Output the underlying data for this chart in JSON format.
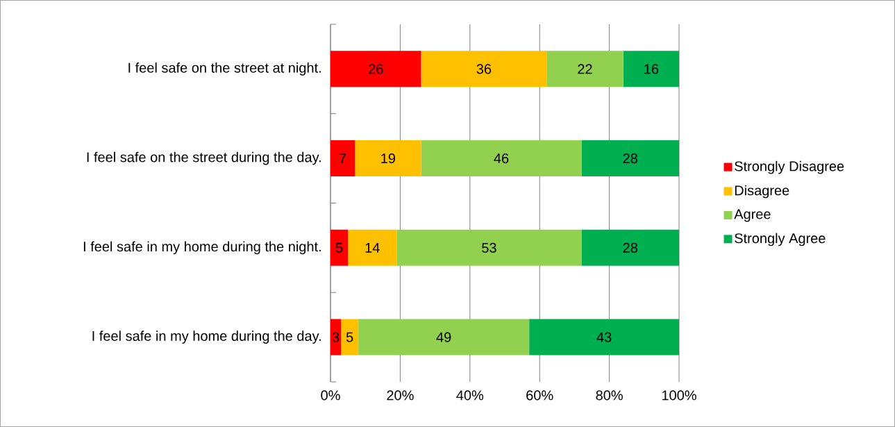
{
  "chart_data": {
    "type": "bar",
    "orientation": "horizontal",
    "stacked": true,
    "categories": [
      "I feel safe on the street at night.",
      "I feel safe on the street during the day.",
      "I feel safe in my home during the night.",
      "I feel safe in my home during the day."
    ],
    "series": [
      {
        "name": "Strongly Disagree",
        "color": "#ff0000",
        "values": [
          26,
          7,
          5,
          3
        ]
      },
      {
        "name": "Disagree",
        "color": "#ffc000",
        "values": [
          36,
          19,
          14,
          5
        ]
      },
      {
        "name": "Agree",
        "color": "#92d050",
        "values": [
          22,
          46,
          53,
          49
        ]
      },
      {
        "name": "Strongly Agree",
        "color": "#00b050",
        "values": [
          16,
          28,
          28,
          43
        ]
      }
    ],
    "xlim": [
      0,
      100
    ],
    "xticks": [
      {
        "value": 0,
        "label": "0%"
      },
      {
        "value": 20,
        "label": "20%"
      },
      {
        "value": 40,
        "label": "40%"
      },
      {
        "value": 60,
        "label": "60%"
      },
      {
        "value": 80,
        "label": "80%"
      },
      {
        "value": 100,
        "label": "100%"
      }
    ],
    "grid": "x",
    "legend": "right",
    "data_labels": true
  }
}
